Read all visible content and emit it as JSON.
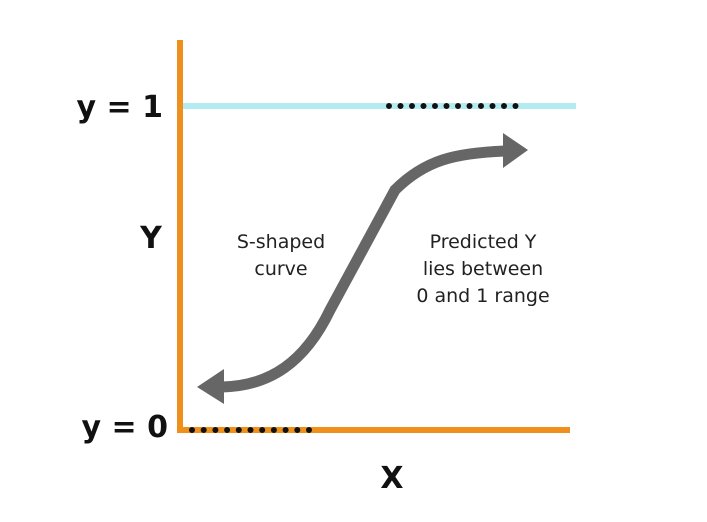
{
  "labels": {
    "y_top": "y = 1",
    "y_bottom": "y = 0",
    "y_axis": "Y",
    "x_axis": "X"
  },
  "annotations": {
    "left_line1": "S-shaped",
    "left_line2": "curve",
    "right_line1": "Predicted Y",
    "right_line2": "lies between",
    "right_line3": "0 and 1 range"
  },
  "colors": {
    "axis": "#f0901c",
    "upper_bound_line": "#b3ecf0",
    "curve": "#666666",
    "dots": "#111111",
    "text": "#111111"
  }
}
